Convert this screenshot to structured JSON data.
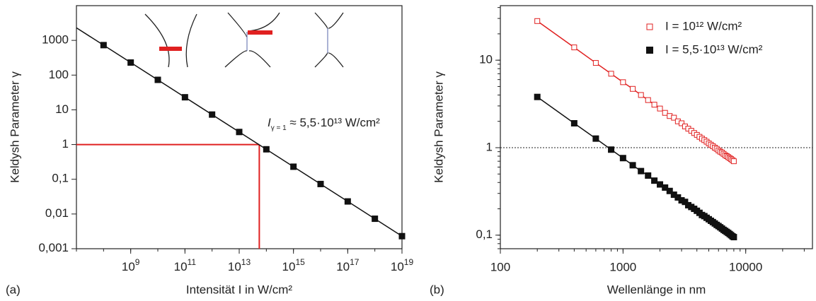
{
  "chart_data": [
    {
      "type": "line",
      "panel_label": "(a)",
      "xlabel": "Intensität I in W/cm²",
      "ylabel": "Keldysh Parameter γ",
      "log_x": true,
      "log_y": true,
      "xlim": [
        10000000,
        10000000000000000000
      ],
      "ylim": [
        0.001,
        10000
      ],
      "xticks": [
        {
          "value": 1000000000,
          "label": "10",
          "sup": "9"
        },
        {
          "value": 100000000000,
          "label": "10",
          "sup": "11"
        },
        {
          "value": 10000000000000,
          "label": "10",
          "sup": "13"
        },
        {
          "value": 1000000000000000,
          "label": "10",
          "sup": "15"
        },
        {
          "value": 100000000000000000,
          "label": "10",
          "sup": "17"
        },
        {
          "value": 10000000000000000000,
          "label": "10",
          "sup": "19"
        }
      ],
      "yticks": [
        {
          "value": 0.001,
          "label": "0,001"
        },
        {
          "value": 0.01,
          "label": "0,01"
        },
        {
          "value": 0.1,
          "label": "0,1"
        },
        1,
        10,
        100,
        1000
      ],
      "x": [
        100000000,
        1000000000,
        10000000000,
        100000000000,
        1000000000000,
        10000000000000,
        100000000000000,
        1000000000000000,
        10000000000000000,
        100000000000000000,
        1000000000000000000,
        10000000000000000000
      ],
      "series": [
        {
          "color": "#111111",
          "marker": "filled",
          "values": [
            730,
            230,
            73,
            23,
            7.3,
            2.3,
            0.73,
            0.23,
            0.073,
            0.023,
            0.0073,
            0.0023
          ]
        }
      ],
      "fit": {
        "color": "#111111",
        "x": [
          10000000,
          10000000000000000000
        ],
        "values": [
          2300,
          0.0023
        ]
      },
      "guide": {
        "color": "#e02020",
        "x": 55000000000000,
        "y": 1
      },
      "annotation": {
        "main": "I",
        "sub": "γ = 1",
        "text": " ≈ 5,5·10¹³ W/cm²"
      }
    },
    {
      "type": "line",
      "panel_label": "(b)",
      "xlabel": "Wellenlänge in nm",
      "ylabel": "Keldysh Parameter γ",
      "log_x": true,
      "log_y": true,
      "xlim": [
        100,
        35000
      ],
      "ylim": [
        0.07,
        42
      ],
      "xticks": [
        100,
        1000,
        10000
      ],
      "yticks": [
        {
          "value": 0.1,
          "label": "0,1"
        },
        1,
        10
      ],
      "hline": 1,
      "legend": "upper right",
      "x": [
        200,
        400,
        600,
        800,
        1000,
        1200,
        1400,
        1600,
        1800,
        2000,
        2200,
        2400,
        2600,
        2800,
        3000,
        3200,
        3400,
        3600,
        3800,
        4000,
        4200,
        4400,
        4600,
        4800,
        5000,
        5200,
        5400,
        5600,
        5800,
        6000,
        6200,
        6400,
        6600,
        6800,
        7000,
        7200,
        7400,
        7600,
        7800,
        8000
      ],
      "series": [
        {
          "name": "I = 10¹² W/cm²",
          "color": "#e02020",
          "marker": "open",
          "values": [
            28,
            14,
            9.3,
            7.0,
            5.6,
            4.7,
            4.0,
            3.5,
            3.1,
            2.8,
            2.5,
            2.3,
            2.2,
            2.0,
            1.9,
            1.75,
            1.65,
            1.56,
            1.47,
            1.4,
            1.33,
            1.27,
            1.22,
            1.17,
            1.12,
            1.08,
            1.04,
            1.0,
            0.97,
            0.93,
            0.9,
            0.88,
            0.85,
            0.82,
            0.8,
            0.78,
            0.76,
            0.74,
            0.72,
            0.7
          ]
        },
        {
          "name": "I = 5,5·10¹³ W/cm²",
          "color": "#111111",
          "marker": "filled",
          "values": [
            3.8,
            1.9,
            1.27,
            0.95,
            0.76,
            0.63,
            0.54,
            0.48,
            0.42,
            0.38,
            0.35,
            0.32,
            0.29,
            0.27,
            0.25,
            0.24,
            0.22,
            0.21,
            0.2,
            0.19,
            0.18,
            0.17,
            0.165,
            0.158,
            0.152,
            0.146,
            0.141,
            0.136,
            0.131,
            0.127,
            0.123,
            0.119,
            0.115,
            0.112,
            0.109,
            0.106,
            0.103,
            0.1,
            0.097,
            0.095
          ]
        }
      ]
    }
  ]
}
